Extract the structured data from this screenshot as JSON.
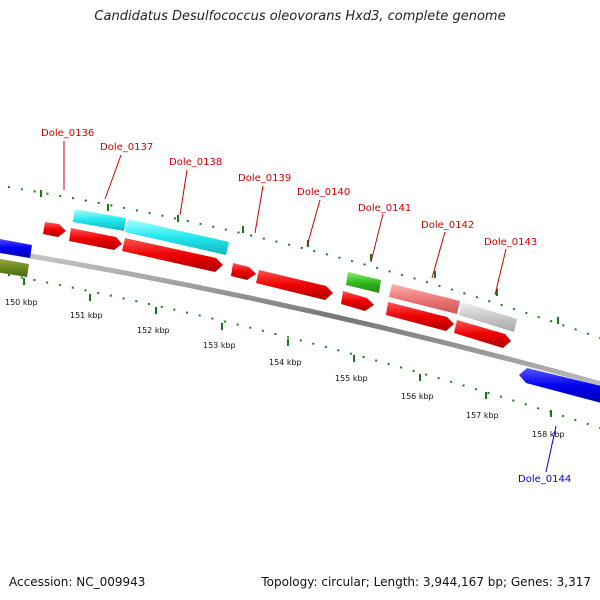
{
  "title": "Candidatus Desulfococcus oleovorans Hxd3, complete genome",
  "footer": {
    "accession": "Accession: NC_009943",
    "summary": "Topology: circular; Length: 3,944,167 bp; Genes: 3,317"
  },
  "colors": {
    "forward_gene_label": "#cc0000",
    "reverse_gene_label": "#0000cc",
    "backbone": "#888888",
    "tick": "#1a7a1a"
  },
  "scale_labels": [
    "150 kbp",
    "151 kbp",
    "152 kbp",
    "153 kbp",
    "154 kbp",
    "155 kbp",
    "156 kbp",
    "157 kbp",
    "158 kbp"
  ],
  "gene_labels": [
    {
      "name": "Dole_0136",
      "strand": "forward"
    },
    {
      "name": "Dole_0137",
      "strand": "forward"
    },
    {
      "name": "Dole_0138",
      "strand": "forward"
    },
    {
      "name": "Dole_0139",
      "strand": "forward"
    },
    {
      "name": "Dole_0140",
      "strand": "forward"
    },
    {
      "name": "Dole_0141",
      "strand": "forward"
    },
    {
      "name": "Dole_0142",
      "strand": "forward"
    },
    {
      "name": "Dole_0143",
      "strand": "forward"
    },
    {
      "name": "Dole_0144",
      "strand": "reverse"
    }
  ]
}
